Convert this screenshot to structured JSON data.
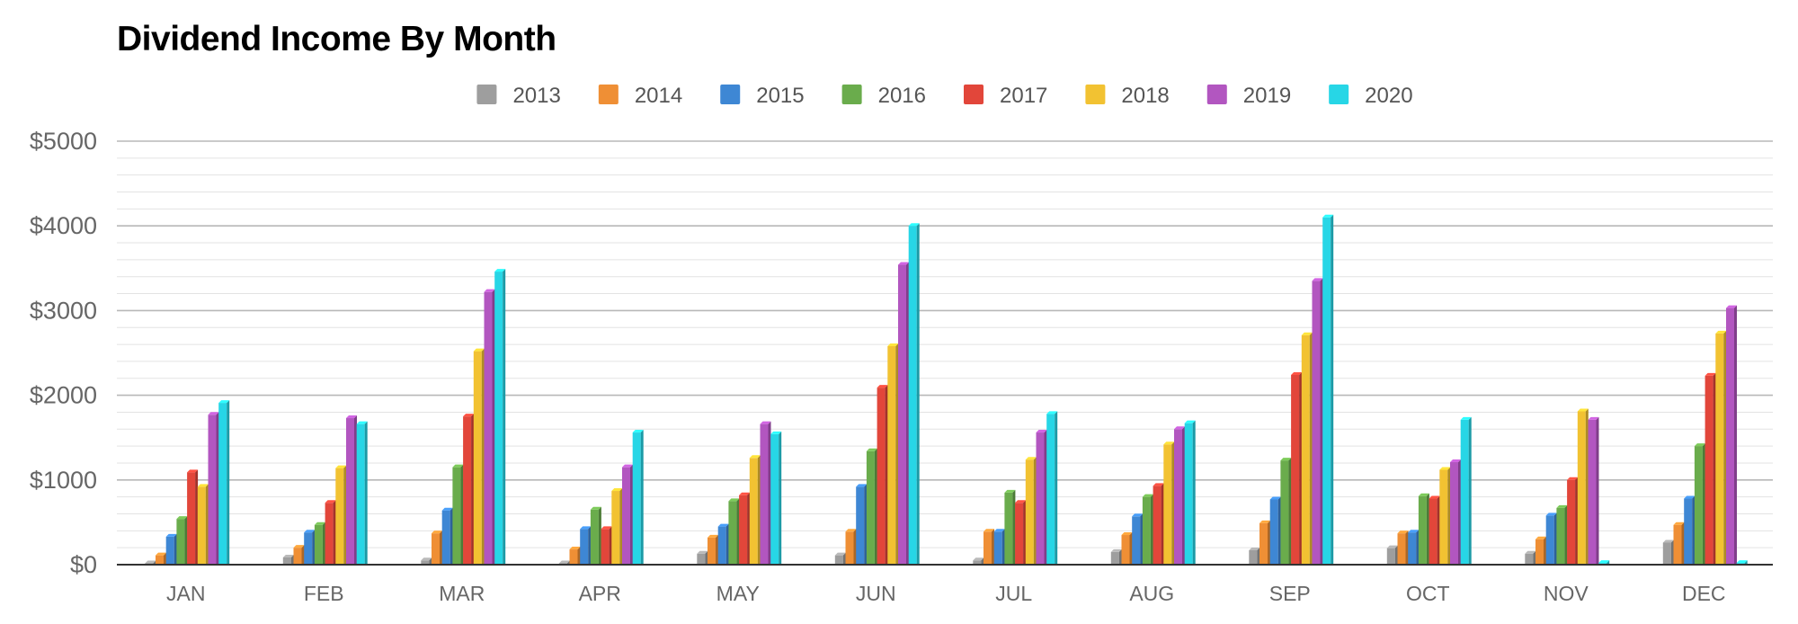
{
  "chart_data": {
    "type": "bar",
    "title": "Dividend Income By Month",
    "xlabel": "",
    "ylabel": "",
    "categories": [
      "JAN",
      "FEB",
      "MAR",
      "APR",
      "MAY",
      "JUN",
      "JUL",
      "AUG",
      "SEP",
      "OCT",
      "NOV",
      "DEC"
    ],
    "ylim": [
      0,
      5000
    ],
    "y_ticks": [
      0,
      1000,
      2000,
      3000,
      4000,
      5000
    ],
    "y_tick_labels": [
      "$0",
      "$1000",
      "$2000",
      "$3000",
      "$4000",
      "$5000"
    ],
    "grid": true,
    "minor_grid_step": 200,
    "legend_position": "top",
    "series": [
      {
        "name": "2013",
        "color": "#9e9e9e",
        "values": [
          5,
          85,
          50,
          10,
          130,
          110,
          50,
          150,
          170,
          195,
          130,
          260
        ]
      },
      {
        "name": "2014",
        "color": "#ef8f35",
        "values": [
          110,
          200,
          370,
          180,
          320,
          390,
          390,
          350,
          490,
          370,
          300,
          470
        ]
      },
      {
        "name": "2015",
        "color": "#3e87d4",
        "values": [
          330,
          380,
          640,
          420,
          450,
          920,
          390,
          570,
          770,
          380,
          580,
          780
        ]
      },
      {
        "name": "2016",
        "color": "#6aac4c",
        "values": [
          540,
          470,
          1150,
          650,
          750,
          1340,
          850,
          800,
          1230,
          810,
          670,
          1400
        ]
      },
      {
        "name": "2017",
        "color": "#e2463a",
        "values": [
          1090,
          730,
          1750,
          420,
          820,
          2090,
          730,
          930,
          2240,
          780,
          1000,
          2230
        ]
      },
      {
        "name": "2018",
        "color": "#f2c232",
        "values": [
          920,
          1140,
          2520,
          870,
          1260,
          2580,
          1240,
          1420,
          2710,
          1120,
          1810,
          2730
        ]
      },
      {
        "name": "2019",
        "color": "#b256c0",
        "values": [
          1770,
          1730,
          3220,
          1150,
          1660,
          3540,
          1560,
          1600,
          3350,
          1210,
          1710,
          3030
        ]
      },
      {
        "name": "2020",
        "color": "#27d6e6",
        "values": [
          1910,
          1660,
          3460,
          1560,
          1540,
          4000,
          1780,
          1670,
          4100,
          1710,
          20,
          20
        ]
      }
    ]
  }
}
